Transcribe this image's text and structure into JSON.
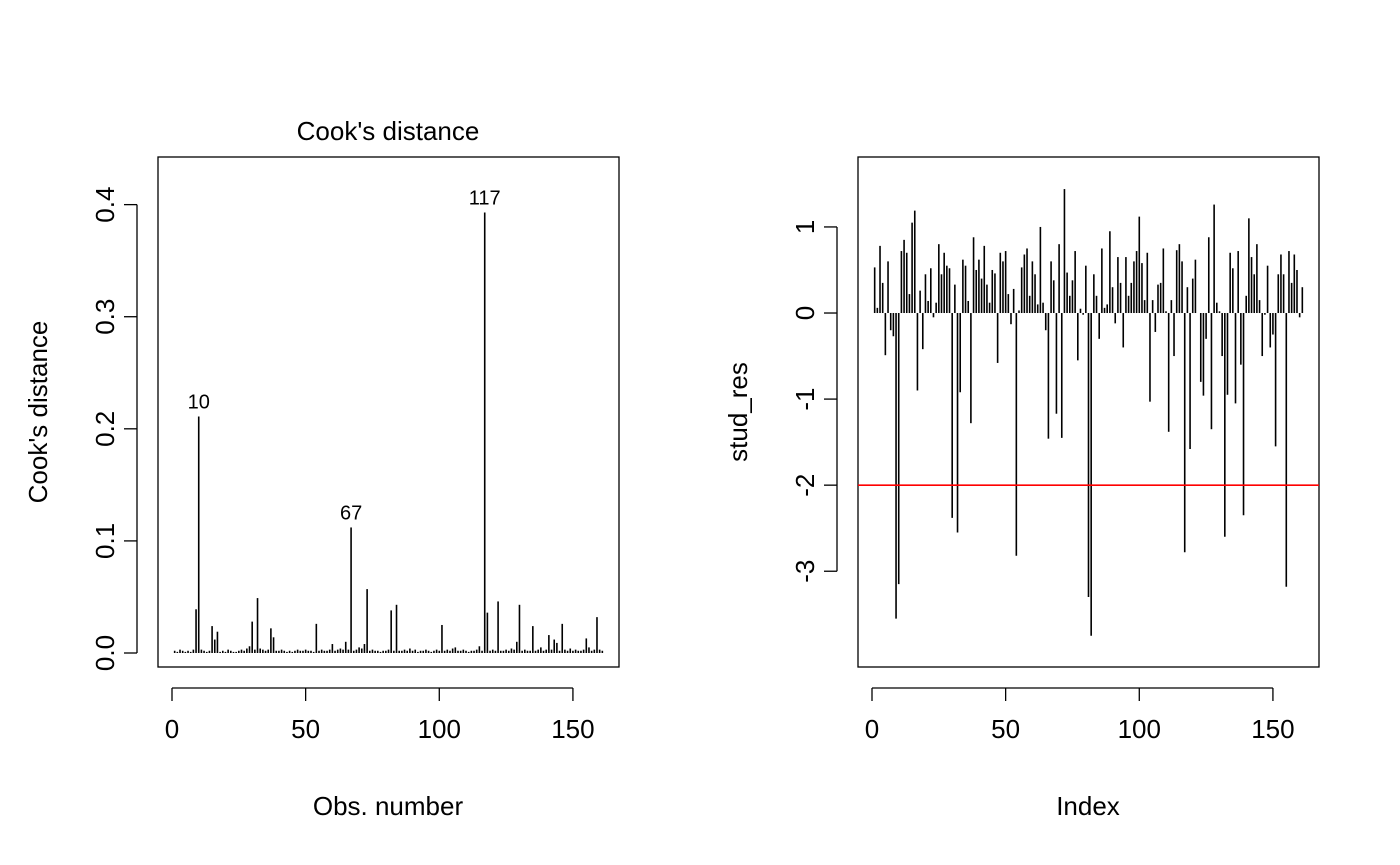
{
  "chart_data": [
    {
      "type": "bar",
      "subtype": "spike",
      "title": "Cook's distance",
      "xlabel": "Obs. number",
      "ylabel": "Cook's distance",
      "xlim": [
        0,
        162
      ],
      "ylim": [
        0,
        0.43
      ],
      "xticks": [
        0,
        50,
        100,
        150
      ],
      "yticks": [
        0.0,
        0.1,
        0.2,
        0.3,
        0.4
      ],
      "ytick_labels": [
        "0.0",
        "0.1",
        "0.2",
        "0.3",
        "0.4"
      ],
      "x": [
        1,
        2,
        3,
        4,
        5,
        6,
        7,
        8,
        9,
        10,
        11,
        12,
        13,
        14,
        15,
        16,
        17,
        18,
        19,
        20,
        21,
        22,
        23,
        24,
        25,
        26,
        27,
        28,
        29,
        30,
        31,
        32,
        33,
        34,
        35,
        36,
        37,
        38,
        39,
        40,
        41,
        42,
        43,
        44,
        45,
        46,
        47,
        48,
        49,
        50,
        51,
        52,
        53,
        54,
        55,
        56,
        57,
        58,
        59,
        60,
        61,
        62,
        63,
        64,
        65,
        66,
        67,
        68,
        69,
        70,
        71,
        72,
        73,
        74,
        75,
        76,
        77,
        78,
        79,
        80,
        81,
        82,
        83,
        84,
        85,
        86,
        87,
        88,
        89,
        90,
        91,
        92,
        93,
        94,
        95,
        96,
        97,
        98,
        99,
        100,
        101,
        102,
        103,
        104,
        105,
        106,
        107,
        108,
        109,
        110,
        111,
        112,
        113,
        114,
        115,
        116,
        117,
        118,
        119,
        120,
        121,
        122,
        123,
        124,
        125,
        126,
        127,
        128,
        129,
        130,
        131,
        132,
        133,
        134,
        135,
        136,
        137,
        138,
        139,
        140,
        141,
        142,
        143,
        144,
        145,
        146,
        147,
        148,
        149,
        150,
        151,
        152,
        153,
        154,
        155,
        156,
        157,
        158,
        159,
        160,
        161
      ],
      "values": [
        0.002,
        0.001,
        0.003,
        0.002,
        0.001,
        0.002,
        0.001,
        0.003,
        0.039,
        0.211,
        0.003,
        0.002,
        0.001,
        0.002,
        0.024,
        0.012,
        0.019,
        0.001,
        0.002,
        0.001,
        0.003,
        0.002,
        0.001,
        0.001,
        0.002,
        0.003,
        0.002,
        0.004,
        0.006,
        0.028,
        0.003,
        0.049,
        0.004,
        0.003,
        0.002,
        0.003,
        0.022,
        0.014,
        0.002,
        0.002,
        0.003,
        0.002,
        0.001,
        0.002,
        0.001,
        0.002,
        0.003,
        0.002,
        0.002,
        0.003,
        0.002,
        0.002,
        0.001,
        0.026,
        0.002,
        0.003,
        0.002,
        0.002,
        0.003,
        0.008,
        0.002,
        0.003,
        0.004,
        0.003,
        0.01,
        0.003,
        0.112,
        0.002,
        0.003,
        0.005,
        0.004,
        0.008,
        0.057,
        0.002,
        0.003,
        0.002,
        0.002,
        0.001,
        0.002,
        0.002,
        0.003,
        0.038,
        0.002,
        0.043,
        0.002,
        0.002,
        0.003,
        0.002,
        0.004,
        0.002,
        0.003,
        0.001,
        0.002,
        0.002,
        0.003,
        0.002,
        0.001,
        0.002,
        0.003,
        0.002,
        0.025,
        0.002,
        0.003,
        0.002,
        0.004,
        0.005,
        0.002,
        0.002,
        0.003,
        0.002,
        0.001,
        0.002,
        0.002,
        0.003,
        0.006,
        0.002,
        0.393,
        0.036,
        0.002,
        0.003,
        0.002,
        0.046,
        0.002,
        0.002,
        0.003,
        0.002,
        0.004,
        0.003,
        0.01,
        0.043,
        0.002,
        0.003,
        0.002,
        0.002,
        0.024,
        0.002,
        0.003,
        0.005,
        0.002,
        0.003,
        0.016,
        0.003,
        0.012,
        0.009,
        0.002,
        0.026,
        0.003,
        0.002,
        0.004,
        0.002,
        0.003,
        0.002,
        0.002,
        0.003,
        0.013,
        0.005,
        0.002,
        0.003,
        0.032,
        0.003,
        0.002
      ],
      "annotations": [
        {
          "x": 10,
          "y": 0.211,
          "text": "10"
        },
        {
          "x": 67,
          "y": 0.112,
          "text": "67"
        },
        {
          "x": 117,
          "y": 0.393,
          "text": "117"
        }
      ]
    },
    {
      "type": "bar",
      "subtype": "spike",
      "title": "",
      "xlabel": "Index",
      "ylabel": "stud_res",
      "xlim": [
        0,
        162
      ],
      "ylim": [
        -3.95,
        1.65
      ],
      "xticks": [
        0,
        50,
        100,
        150
      ],
      "yticks": [
        -3,
        -2,
        -1,
        0,
        1
      ],
      "ytick_labels": [
        "-3",
        "-2",
        "-1",
        "0",
        "1"
      ],
      "hline": {
        "y": -2,
        "color": "#ff0000"
      },
      "x": [
        1,
        2,
        3,
        4,
        5,
        6,
        7,
        8,
        9,
        10,
        11,
        12,
        13,
        14,
        15,
        16,
        17,
        18,
        19,
        20,
        21,
        22,
        23,
        24,
        25,
        26,
        27,
        28,
        29,
        30,
        31,
        32,
        33,
        34,
        35,
        36,
        37,
        38,
        39,
        40,
        41,
        42,
        43,
        44,
        45,
        46,
        47,
        48,
        49,
        50,
        51,
        52,
        53,
        54,
        55,
        56,
        57,
        58,
        59,
        60,
        61,
        62,
        63,
        64,
        65,
        66,
        67,
        68,
        69,
        70,
        71,
        72,
        73,
        74,
        75,
        76,
        77,
        78,
        79,
        80,
        81,
        82,
        83,
        84,
        85,
        86,
        87,
        88,
        89,
        90,
        91,
        92,
        93,
        94,
        95,
        96,
        97,
        98,
        99,
        100,
        101,
        102,
        103,
        104,
        105,
        106,
        107,
        108,
        109,
        110,
        111,
        112,
        113,
        114,
        115,
        116,
        117,
        118,
        119,
        120,
        121,
        122,
        123,
        124,
        125,
        126,
        127,
        128,
        129,
        130,
        131,
        132,
        133,
        134,
        135,
        136,
        137,
        138,
        139,
        140,
        141,
        142,
        143,
        144,
        145,
        146,
        147,
        148,
        149,
        150,
        151,
        152,
        153,
        154,
        155,
        156,
        157,
        158,
        159,
        160,
        161
      ],
      "values": [
        0.53,
        0.06,
        0.78,
        0.35,
        -0.49,
        0.6,
        -0.2,
        -0.27,
        -3.55,
        -3.15,
        0.72,
        0.85,
        0.7,
        0.22,
        1.05,
        1.19,
        -0.9,
        0.26,
        -0.42,
        0.45,
        0.14,
        0.52,
        -0.05,
        0.12,
        0.8,
        0.45,
        0.7,
        0.55,
        0.52,
        -2.38,
        0.33,
        -2.55,
        -0.92,
        0.62,
        0.55,
        0.14,
        -1.28,
        0.88,
        0.5,
        0.62,
        0.4,
        0.78,
        0.33,
        0.12,
        0.5,
        0.46,
        -0.58,
        0.7,
        0.6,
        0.72,
        0.22,
        -0.13,
        0.28,
        -2.82,
        0.03,
        0.53,
        0.68,
        0.75,
        0.2,
        0.6,
        0.45,
        0.1,
        1.0,
        0.12,
        -0.2,
        -1.46,
        0.6,
        0.38,
        -1.17,
        0.8,
        -1.45,
        1.44,
        0.47,
        0.2,
        0.38,
        0.72,
        -0.55,
        0.05,
        -0.02,
        0.55,
        -3.3,
        -3.75,
        0.45,
        0.2,
        -0.3,
        0.75,
        0.06,
        0.1,
        0.95,
        0.3,
        -0.12,
        0.65,
        0.35,
        -0.4,
        0.65,
        0.2,
        0.35,
        0.6,
        0.72,
        1.12,
        0.58,
        0.15,
        0.7,
        -1.03,
        0.15,
        -0.22,
        0.33,
        0.35,
        0.75,
        0.02,
        -1.38,
        0.15,
        -0.5,
        0.73,
        0.8,
        0.6,
        -2.78,
        0.3,
        -1.58,
        0.4,
        0.62,
        0.0,
        -0.8,
        -0.96,
        -0.3,
        0.88,
        -1.35,
        1.26,
        0.12,
        0.02,
        -0.5,
        -2.6,
        -0.95,
        0.7,
        0.52,
        -1.05,
        0.72,
        -0.6,
        -2.35,
        0.2,
        1.1,
        0.65,
        0.45,
        0.8,
        0.15,
        -0.5,
        -0.02,
        0.55,
        -0.4,
        -0.25,
        -1.55,
        0.45,
        0.68,
        0.45,
        -3.18,
        0.72,
        0.35,
        0.68,
        0.5,
        -0.05,
        0.3
      ],
      "annotations": []
    }
  ]
}
